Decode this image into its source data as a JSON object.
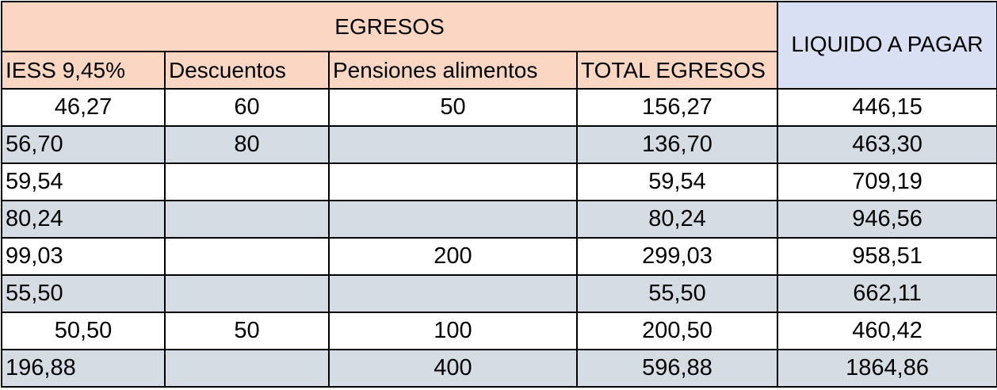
{
  "header": {
    "egresos": "EGRESOS",
    "liquido": "LIQUIDO A PAGAR",
    "columns": [
      "IESS 9,45%",
      "Descuentos",
      "Pensiones alimentos",
      "TOTAL EGRESOS"
    ]
  },
  "rows": [
    [
      "46,27",
      "60",
      "50",
      "156,27",
      "446,15"
    ],
    [
      "56,70",
      "80",
      "",
      "136,70",
      "463,30"
    ],
    [
      "59,54",
      "",
      "",
      "59,54",
      "709,19"
    ],
    [
      "80,24",
      "",
      "",
      "80,24",
      "946,56"
    ],
    [
      "99,03",
      "",
      "200",
      "299,03",
      "958,51"
    ],
    [
      "55,50",
      "",
      "",
      "55,50",
      "662,11"
    ],
    [
      "50,50",
      "50",
      "100",
      "200,50",
      "460,42"
    ],
    [
      "196,88",
      "",
      "400",
      "596,88",
      "1864,86"
    ]
  ],
  "colors": {
    "header_peach": "#fbd6c2",
    "header_lavender": "#d9e0f3",
    "row_shade": "#d5dce4"
  }
}
